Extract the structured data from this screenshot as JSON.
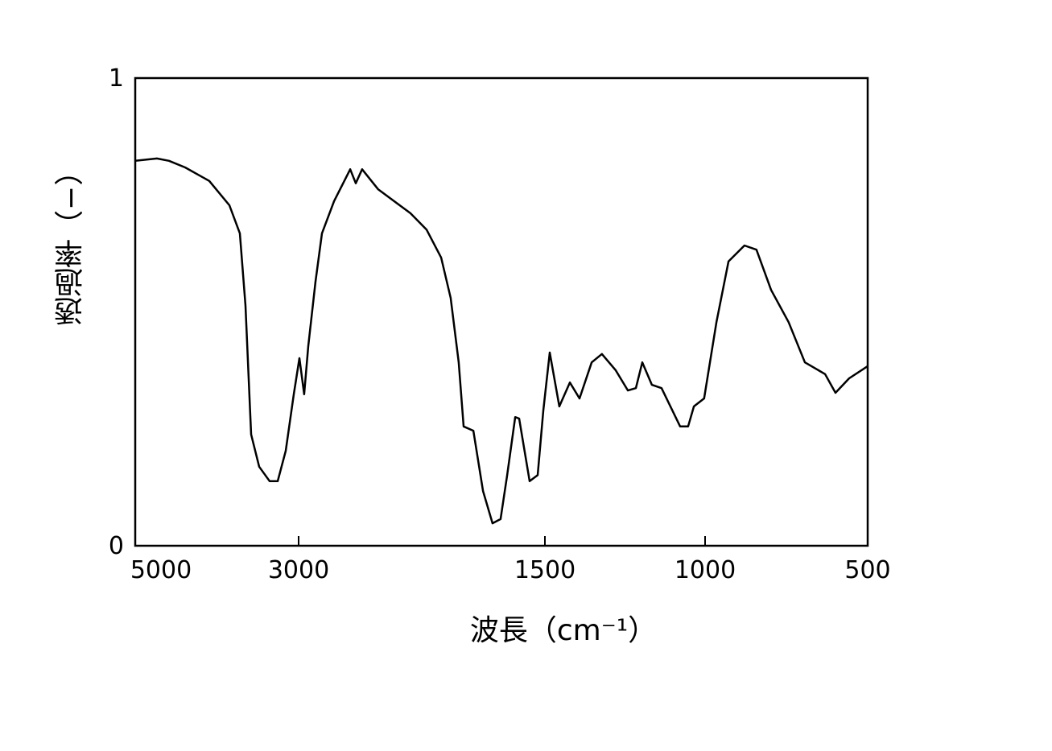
{
  "chart_data": {
    "type": "line",
    "x_label": "波長（cm⁻¹）",
    "y_label": "透過率（−）",
    "xlim": [
      5000,
      500
    ],
    "xticks": [
      5000,
      3000,
      1500,
      1000,
      500
    ],
    "ylim": [
      0,
      1
    ],
    "yticks": [
      0,
      1
    ],
    "series": [
      {
        "color": "#000000",
        "x": [
          5000,
          4734,
          4586,
          4389,
          4094,
          3847,
          3719,
          3650,
          3581,
          3483,
          3355,
          3256,
          3158,
          3059,
          2995,
          2966,
          2941,
          2897,
          2858,
          2784,
          2686,
          2652,
          2613,
          2515,
          2319,
          2221,
          2132,
          2074,
          2025,
          1995,
          1936,
          1877,
          1819,
          1770,
          1730,
          1681,
          1657,
          1593,
          1544,
          1510,
          1485,
          1455,
          1422,
          1392,
          1354,
          1322,
          1279,
          1241,
          1216,
          1196,
          1166,
          1136,
          1078,
          1053,
          1035,
          1003,
          965,
          928,
          879,
          842,
          797,
          743,
          693,
          631,
          599,
          557,
          500
        ],
        "values": [
          0.823,
          0.828,
          0.823,
          0.809,
          0.78,
          0.728,
          0.668,
          0.513,
          0.238,
          0.169,
          0.138,
          0.138,
          0.203,
          0.324,
          0.401,
          0.324,
          0.427,
          0.565,
          0.668,
          0.737,
          0.805,
          0.775,
          0.805,
          0.762,
          0.711,
          0.676,
          0.616,
          0.53,
          0.392,
          0.255,
          0.246,
          0.117,
          0.048,
          0.057,
          0.151,
          0.275,
          0.272,
          0.138,
          0.151,
          0.289,
          0.413,
          0.298,
          0.349,
          0.315,
          0.392,
          0.41,
          0.375,
          0.332,
          0.337,
          0.392,
          0.344,
          0.337,
          0.255,
          0.255,
          0.298,
          0.315,
          0.478,
          0.608,
          0.642,
          0.633,
          0.547,
          0.478,
          0.392,
          0.367,
          0.327,
          0.358,
          0.384
        ]
      }
    ]
  }
}
